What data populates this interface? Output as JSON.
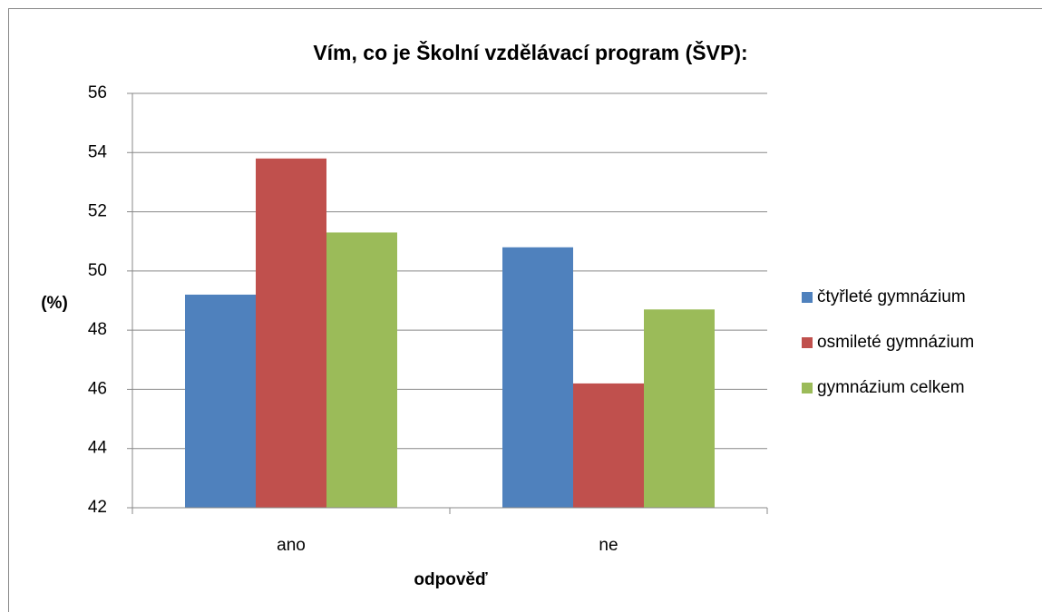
{
  "chart_data": {
    "type": "bar",
    "title": "Vím, co je Školní vzdělávací program (ŠVP):",
    "categories": [
      "ano",
      "ne"
    ],
    "series": [
      {
        "name": "čtyřleté gymnázium",
        "color": "#4f81bd",
        "values": [
          49.2,
          50.8
        ]
      },
      {
        "name": "osmileté gymnázium",
        "color": "#c0504d",
        "values": [
          53.8,
          46.2
        ]
      },
      {
        "name": "gymnázium celkem",
        "color": "#9bbb59",
        "values": [
          51.3,
          48.7
        ]
      }
    ],
    "ylabel": "(%)",
    "xlabel": "odpověď",
    "ylim": [
      42,
      56
    ],
    "yticks": [
      42,
      44,
      46,
      48,
      50,
      52,
      54,
      56
    ],
    "grid": true,
    "legend": "right"
  }
}
